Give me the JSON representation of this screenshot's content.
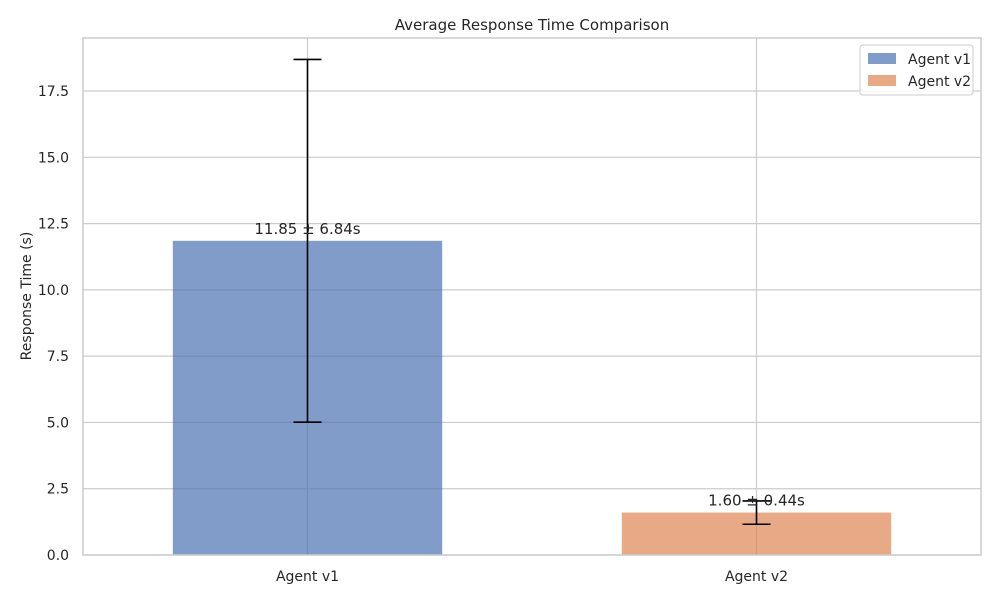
{
  "chart_data": {
    "type": "bar",
    "title": "Average Response Time Comparison",
    "xlabel": "",
    "ylabel": "Response Time (s)",
    "categories": [
      "Agent v1",
      "Agent v2"
    ],
    "values": [
      11.85,
      1.6
    ],
    "errors": [
      6.84,
      0.44
    ],
    "value_labels": [
      "11.85 ± 6.84s",
      "1.60 ± 0.44s"
    ],
    "colors": [
      "#4c72b0",
      "#dd8452"
    ],
    "bar_opacity": 0.7,
    "ylim": [
      0,
      19.5
    ],
    "yticks": [
      0.0,
      2.5,
      5.0,
      7.5,
      10.0,
      12.5,
      15.0,
      17.5
    ],
    "ytick_labels": [
      "0.0",
      "2.5",
      "5.0",
      "7.5",
      "10.0",
      "12.5",
      "15.0",
      "17.5"
    ],
    "grid": true,
    "legend": {
      "placement": "top-right",
      "entries": [
        "Agent v1",
        "Agent v2"
      ]
    }
  }
}
